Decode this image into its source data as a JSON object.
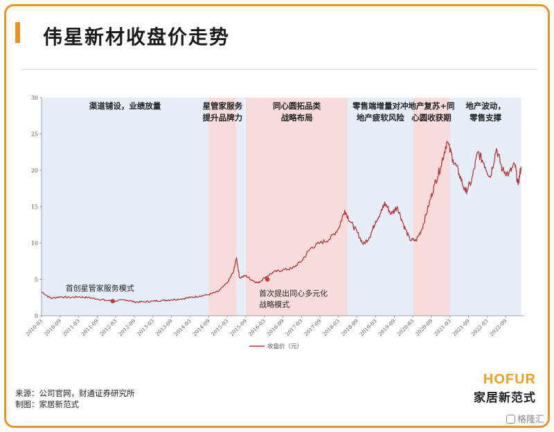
{
  "header": {
    "title": "伟星新材收盘价走势"
  },
  "chart_data": {
    "type": "line",
    "ylim": [
      0,
      30
    ],
    "yticks": [
      0,
      5,
      10,
      15,
      20,
      25,
      30
    ],
    "xticks": [
      "2010-03",
      "2010-09",
      "2011-03",
      "2011-09",
      "2012-03",
      "2012-09",
      "2013-03",
      "2013-09",
      "2014-03",
      "2014-09",
      "2015-03",
      "2015-09",
      "2016-03",
      "2016-09",
      "2017-03",
      "2017-09",
      "2018-03",
      "2018-09",
      "2019-03",
      "2019-09",
      "2020-03",
      "2020-09",
      "2021-03",
      "2021-09",
      "2022-03",
      "2022-09"
    ],
    "legend": {
      "label": "收盘价（元）",
      "position": "bottom"
    },
    "series": [
      {
        "color": "#b5373a",
        "points": [
          [
            "2010-03",
            3.3
          ],
          [
            "2010-06",
            2.4
          ],
          [
            "2010-09",
            2.6
          ],
          [
            "2010-12",
            2.5
          ],
          [
            "2011-03",
            2.6
          ],
          [
            "2011-06",
            2.5
          ],
          [
            "2011-09",
            2.3
          ],
          [
            "2011-12",
            2.1
          ],
          [
            "2012-03",
            2.0
          ],
          [
            "2012-06",
            2.2
          ],
          [
            "2012-09",
            1.9
          ],
          [
            "2012-12",
            1.9
          ],
          [
            "2013-03",
            2.0
          ],
          [
            "2013-06",
            2.1
          ],
          [
            "2013-09",
            2.2
          ],
          [
            "2013-12",
            2.3
          ],
          [
            "2014-03",
            2.5
          ],
          [
            "2014-06",
            2.7
          ],
          [
            "2014-09",
            2.9
          ],
          [
            "2014-12",
            3.3
          ],
          [
            "2015-03",
            4.5
          ],
          [
            "2015-05",
            6.0
          ],
          [
            "2015-06",
            8.0
          ],
          [
            "2015-07",
            5.2
          ],
          [
            "2015-09",
            5.5
          ],
          [
            "2015-11",
            4.9
          ],
          [
            "2016-01",
            4.5
          ],
          [
            "2016-03",
            5.2
          ],
          [
            "2016-06",
            6.0
          ],
          [
            "2016-09",
            6.3
          ],
          [
            "2016-12",
            6.5
          ],
          [
            "2017-03",
            7.5
          ],
          [
            "2017-06",
            9.3
          ],
          [
            "2017-09",
            10.0
          ],
          [
            "2017-12",
            10.5
          ],
          [
            "2018-03",
            12.0
          ],
          [
            "2018-05",
            14.5
          ],
          [
            "2018-07",
            12.8
          ],
          [
            "2018-09",
            11.5
          ],
          [
            "2018-11",
            9.8
          ],
          [
            "2019-01",
            10.8
          ],
          [
            "2019-03",
            13.0
          ],
          [
            "2019-05",
            14.5
          ],
          [
            "2019-06",
            15.5
          ],
          [
            "2019-08",
            14.0
          ],
          [
            "2019-10",
            15.0
          ],
          [
            "2019-12",
            12.5
          ],
          [
            "2020-02",
            10.5
          ],
          [
            "2020-04",
            10.3
          ],
          [
            "2020-06",
            12.0
          ],
          [
            "2020-08",
            15.0
          ],
          [
            "2020-10",
            18.0
          ],
          [
            "2020-12",
            20.5
          ],
          [
            "2021-02",
            24.0
          ],
          [
            "2021-04",
            21.5
          ],
          [
            "2021-06",
            19.5
          ],
          [
            "2021-08",
            17.0
          ],
          [
            "2021-10",
            18.5
          ],
          [
            "2021-12",
            22.5
          ],
          [
            "2022-02",
            21.0
          ],
          [
            "2022-04",
            19.0
          ],
          [
            "2022-06",
            23.0
          ],
          [
            "2022-08",
            20.0
          ],
          [
            "2022-10",
            19.5
          ],
          [
            "2022-12",
            20.8
          ],
          [
            "2023-01",
            18.0
          ],
          [
            "2023-02",
            20.5
          ]
        ]
      }
    ],
    "phases": [
      {
        "label_lines": [
          "渠道铺设，业绩放量"
        ],
        "start": "2010-03",
        "end": "2014-09",
        "color": "#e6eef8"
      },
      {
        "label_lines": [
          "星管家服务",
          "提升品牌力"
        ],
        "start": "2014-09",
        "end": "2015-06",
        "color": "#f8dcdc"
      },
      {
        "label_lines": [],
        "start": "2015-06",
        "end": "2015-09",
        "color": "#e6eef8"
      },
      {
        "label_lines": [
          "同心圆拓品类",
          "战略布局"
        ],
        "start": "2015-09",
        "end": "2018-06",
        "color": "#f8dcdc"
      },
      {
        "label_lines": [
          "零售端增量对冲",
          "地产疲软风险"
        ],
        "start": "2018-06",
        "end": "2020-03",
        "color": "#e6eef8"
      },
      {
        "label_lines": [
          "地产复苏+同",
          "心圆收获期"
        ],
        "start": "2020-03",
        "end": "2021-03",
        "color": "#f8dcdc"
      },
      {
        "label_lines": [
          "地产波动，",
          "零售支撑"
        ],
        "start": "2021-03",
        "end": "2023-02",
        "color": "#e6eef8"
      }
    ],
    "annotations": [
      {
        "text_lines": [
          "首创星管家服务模式"
        ],
        "x": "2012-02",
        "y": 2.0
      },
      {
        "text_lines": [
          "首次提出同心多元化",
          "战略模式"
        ],
        "x": "2016-04",
        "y": 5.0
      }
    ]
  },
  "footer": {
    "source_line1": "来源：公司官网，财通证券研究所",
    "source_line2": "制图：家居新范式",
    "brand_top": "HOFUR",
    "brand_bottom": "家居新范式",
    "watermark": "格隆汇"
  },
  "colors": {
    "accent": "#e8951f",
    "line": "#b5373a",
    "phase_blue": "#e6eef8",
    "phase_pink": "#f8dcdc"
  }
}
